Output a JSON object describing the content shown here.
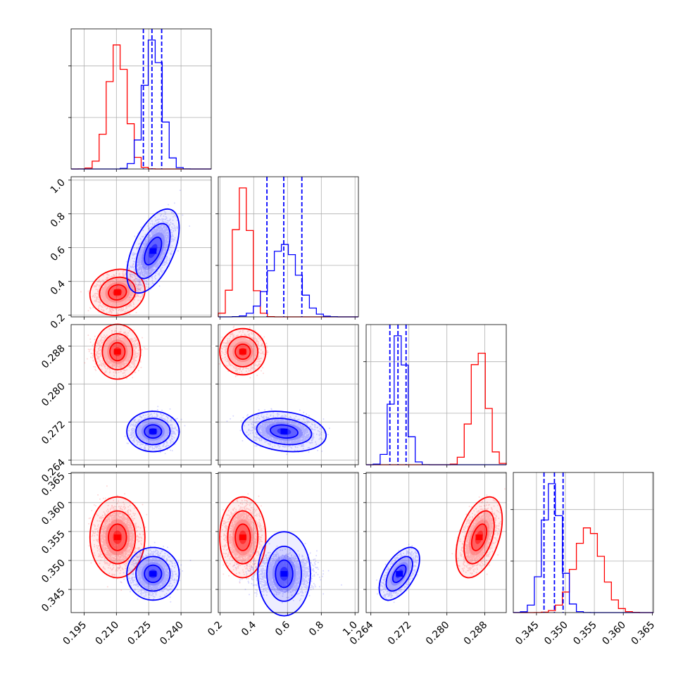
{
  "chart_data": {
    "type": "corner",
    "grid": true,
    "parameters": [
      {
        "ticks": [
          0.195,
          0.21,
          0.225,
          0.24
        ],
        "tick_labels": [
          "0.195",
          "0.210",
          "0.225",
          "0.240"
        ],
        "range": [
          0.189,
          0.254
        ]
      },
      {
        "ticks": [
          0.2,
          0.4,
          0.6,
          0.8,
          1.0
        ],
        "tick_labels": [
          "0.2",
          "0.4",
          "0.6",
          "0.8",
          "1.0"
        ],
        "range": [
          0.19,
          1.02
        ]
      },
      {
        "ticks": [
          0.264,
          0.272,
          0.28,
          0.288
        ],
        "tick_labels": [
          "0.264",
          "0.272",
          "0.280",
          "0.288"
        ],
        "range": [
          0.263,
          0.2925
        ]
      },
      {
        "ticks": [
          0.345,
          0.35,
          0.355,
          0.36,
          0.365
        ],
        "tick_labels": [
          "0.345",
          "0.350",
          "0.355",
          "0.360",
          "0.365"
        ],
        "range": [
          0.341,
          0.3652
        ]
      }
    ],
    "series": [
      {
        "color": "#ff0000",
        "mean": [
          0.2105,
          0.335,
          0.2868,
          0.354
        ],
        "std": [
          0.0042,
          0.045,
          0.0016,
          0.0023
        ],
        "corr": [
          [
            1,
            0.1,
            0.0,
            0.0
          ],
          [
            0.1,
            1,
            0.0,
            0.0
          ],
          [
            0.0,
            0.0,
            1,
            0.45
          ],
          [
            0.0,
            0.0,
            0.45,
            1
          ]
        ],
        "quantiles": []
      },
      {
        "color": "#0000ff",
        "mean": [
          0.227,
          0.58,
          0.27,
          0.3477
        ],
        "std": [
          0.004,
          0.082,
          0.0014,
          0.0015
        ],
        "corr": [
          [
            1,
            0.55,
            0.0,
            0.0
          ],
          [
            0.55,
            1,
            -0.2,
            0.0
          ],
          [
            0.0,
            -0.2,
            1,
            0.55
          ],
          [
            0.0,
            0.0,
            0.55,
            1
          ]
        ],
        "quantiles": [
          [
            0.2225,
            0.2265,
            0.231
          ],
          [
            0.478,
            0.578,
            0.685
          ],
          [
            0.268,
            0.2697,
            0.2714
          ],
          [
            0.3463,
            0.3481,
            0.3496
          ]
        ]
      }
    ]
  }
}
